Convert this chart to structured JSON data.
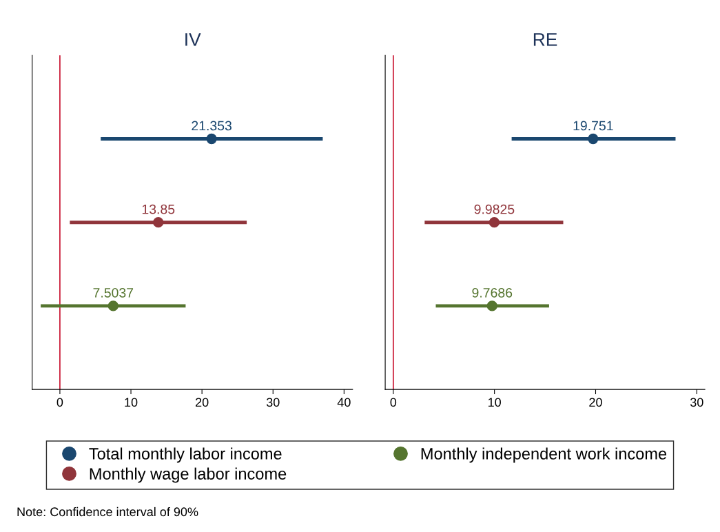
{
  "chart_data": [
    {
      "type": "scatter",
      "orientation": "horizontal",
      "title": "IV",
      "categories": [
        null,
        null,
        null
      ],
      "xlim": [
        -3.9,
        41.2
      ],
      "xticks": [
        0,
        10,
        20,
        30,
        40
      ],
      "data_labels": true,
      "legend": "bottom",
      "grid": false,
      "marker": "circle",
      "ref_lines": [
        {
          "axis": "x",
          "value": 0,
          "color": "#c8102e"
        }
      ],
      "annotations": [
        "Note: Confidence interval of 90%"
      ],
      "series": [
        {
          "name": "Total monthly labor income",
          "color": "#1a476f",
          "values": [
            21.353,
            null,
            null
          ],
          "errors": [
            [
              5.75,
              37.0
            ],
            null,
            null
          ]
        },
        {
          "name": "Monthly wage labor income",
          "color": "#90353b",
          "values": [
            null,
            13.85,
            null
          ],
          "errors": [
            null,
            [
              1.4,
              26.3
            ],
            null
          ]
        },
        {
          "name": "Monthly independent work income",
          "color": "#55752f",
          "values": [
            null,
            null,
            7.5037
          ],
          "errors": [
            null,
            null,
            [
              -2.7,
              17.7
            ]
          ]
        }
      ]
    },
    {
      "type": "scatter",
      "orientation": "horizontal",
      "title": "RE",
      "categories": [
        null,
        null,
        null
      ],
      "xlim": [
        -0.8,
        30.8
      ],
      "xticks": [
        0,
        10,
        20,
        30
      ],
      "data_labels": true,
      "grid": false,
      "marker": "circle",
      "ref_lines": [
        {
          "axis": "x",
          "value": 0,
          "color": "#c8102e"
        }
      ],
      "series": [
        {
          "color": "#1a476f",
          "values": [
            19.751,
            null,
            null
          ],
          "errors": [
            [
              11.7,
              27.9
            ],
            null,
            null
          ]
        },
        {
          "color": "#90353b",
          "values": [
            null,
            9.9825,
            null
          ],
          "errors": [
            null,
            [
              3.1,
              16.8
            ],
            null
          ]
        },
        {
          "color": "#55752f",
          "values": [
            null,
            null,
            9.7686
          ],
          "errors": [
            null,
            null,
            [
              4.2,
              15.4
            ]
          ]
        }
      ]
    }
  ]
}
